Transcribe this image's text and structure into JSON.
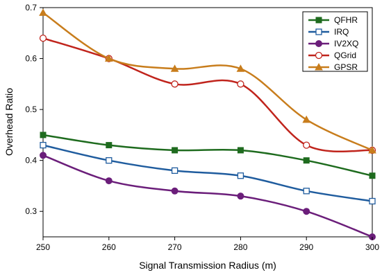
{
  "chart_data": {
    "type": "line",
    "title": "",
    "xlabel": "Signal Transmission Radius (m)",
    "ylabel": "Overhead Ratio",
    "x": [
      250,
      260,
      270,
      280,
      290,
      300
    ],
    "xlim": [
      250,
      300
    ],
    "ylim": [
      0.25,
      0.7
    ],
    "xticks": [
      "250",
      "260",
      "270",
      "280",
      "290",
      "300"
    ],
    "yticks": [
      "0.3",
      "0.4",
      "0.5",
      "0.6",
      "0.7"
    ],
    "grid": false,
    "legend_position": "top-right",
    "series": [
      {
        "name": "QFHR",
        "color": "#1e6b1e",
        "marker": "square-filled",
        "values": [
          0.45,
          0.43,
          0.42,
          0.42,
          0.4,
          0.37
        ]
      },
      {
        "name": "IRQ",
        "color": "#1f5c9e",
        "marker": "square-open",
        "values": [
          0.43,
          0.4,
          0.38,
          0.37,
          0.34,
          0.32
        ]
      },
      {
        "name": "IV2XQ",
        "color": "#6b1e7a",
        "marker": "circle-filled",
        "values": [
          0.41,
          0.36,
          0.34,
          0.33,
          0.3,
          0.25
        ]
      },
      {
        "name": "QGrid",
        "color": "#c0241c",
        "marker": "circle-open",
        "values": [
          0.64,
          0.6,
          0.55,
          0.55,
          0.43,
          0.42
        ]
      },
      {
        "name": "GPSR",
        "color": "#c87d1c",
        "marker": "triangle-filled",
        "values": [
          0.69,
          0.6,
          0.58,
          0.58,
          0.48,
          0.42
        ]
      }
    ]
  }
}
